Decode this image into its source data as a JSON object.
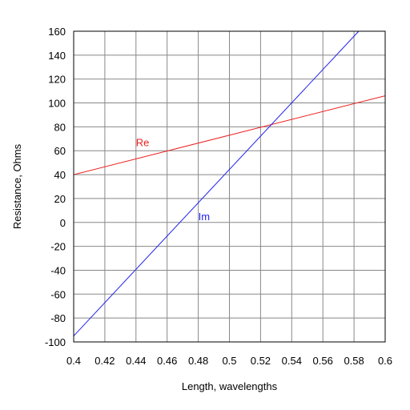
{
  "chart_data": {
    "type": "line",
    "title": "",
    "xlabel": "Length, wavelengths",
    "ylabel": "Resistance, Ohms",
    "xlim": [
      0.4,
      0.6
    ],
    "ylim": [
      -100,
      160
    ],
    "xticks": [
      "0.4",
      "0.42",
      "0.44",
      "0.46",
      "0.48",
      "0.5",
      "0.52",
      "0.54",
      "0.56",
      "0.58",
      "0.6"
    ],
    "yticks": [
      "160",
      "140",
      "120",
      "100",
      "80",
      "60",
      "40",
      "20",
      "0",
      "-20",
      "-40",
      "-60",
      "-80",
      "-100"
    ],
    "grid": true,
    "series": [
      {
        "name": "Re",
        "color": "#ee2222",
        "x": [
          0.4,
          0.6
        ],
        "y": [
          40,
          106
        ],
        "label_at": [
          0.44,
          64
        ]
      },
      {
        "name": "Im",
        "color": "#2222ee",
        "x": [
          0.4,
          0.583
        ],
        "y": [
          -95,
          160
        ],
        "label_at": [
          0.48,
          2
        ]
      }
    ]
  }
}
